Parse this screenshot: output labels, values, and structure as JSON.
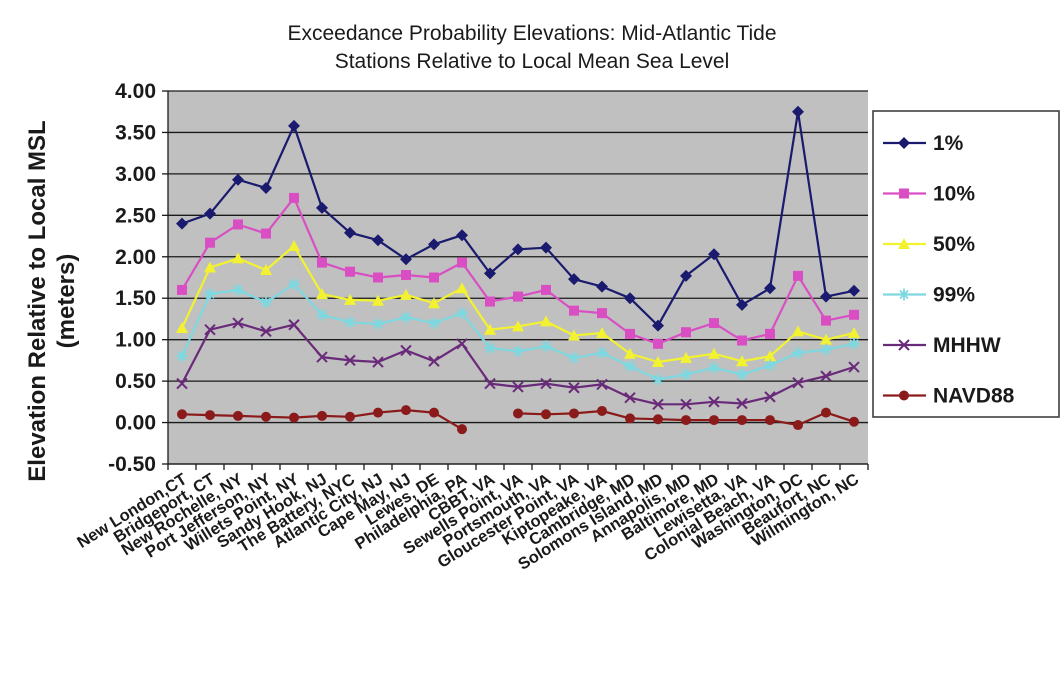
{
  "chart_data": {
    "type": "line",
    "title": "Exceedance Probability Elevations: Mid-Atlantic Tide Stations Relative to Local Mean Sea Level",
    "title_lines": [
      "Exceedance Probability Elevations: Mid-Atlantic Tide",
      "Stations Relative to Local Mean Sea Level"
    ],
    "xlabel": "",
    "ylabel": "Elevation Relative to Local MSL (meters)",
    "ylabel_lines": [
      "Elevation Relative to Local MSL",
      "(meters)"
    ],
    "ylim": [
      -0.5,
      4.0
    ],
    "yticks": [
      4.0,
      3.5,
      3.0,
      2.5,
      2.0,
      1.5,
      1.0,
      0.5,
      0.0,
      -0.5
    ],
    "ytick_labels": [
      "4.00",
      "3.50",
      "3.00",
      "2.50",
      "2.00",
      "1.50",
      "1.00",
      "0.50",
      "0.00",
      "-0.50"
    ],
    "grid": true,
    "plot_background": "#c0c0c0",
    "legend_position": "right",
    "categories": [
      "New London,CT",
      "Bridgeport, CT",
      "New Rochelle, NY",
      "Port Jefferson, NY",
      "Willets Point, NY",
      "Sandy Hook, NJ",
      "The Battery, NYC",
      "Atlantic City, NJ",
      "Cape May, NJ",
      "Lewes, DE",
      "Philadelphia, PA",
      "CBBT, VA",
      "Sewells Point, VA",
      "Portsmouth, VA",
      "Gloucester Point, VA",
      "Kiptopeake, VA",
      "Cambridge, MD",
      "Solomons Island, MD",
      "Annapolis, MD",
      "Baltimore, MD",
      "Lewisetta, VA",
      "Colonial Beach, VA",
      "Washington, DC",
      "Beaufort, NC",
      "Wilmington, NC"
    ],
    "series": [
      {
        "name": "1%",
        "color": "#1a1a6e",
        "marker": "diamond",
        "values": [
          2.4,
          2.52,
          2.93,
          2.83,
          3.58,
          2.59,
          2.29,
          2.2,
          1.97,
          2.15,
          2.26,
          1.8,
          2.09,
          2.11,
          1.73,
          1.64,
          1.5,
          1.17,
          1.77,
          2.03,
          1.42,
          1.62,
          3.75,
          1.52,
          1.59
        ]
      },
      {
        "name": "10%",
        "color": "#d94fc3",
        "marker": "square",
        "values": [
          1.6,
          2.17,
          2.39,
          2.28,
          2.71,
          1.93,
          1.82,
          1.75,
          1.78,
          1.75,
          1.93,
          1.46,
          1.52,
          1.6,
          1.35,
          1.32,
          1.07,
          0.95,
          1.09,
          1.2,
          0.99,
          1.07,
          1.77,
          1.23,
          1.3
        ]
      },
      {
        "name": "50%",
        "color": "#f2f230",
        "marker": "triangle",
        "values": [
          1.14,
          1.87,
          1.98,
          1.84,
          2.13,
          1.55,
          1.48,
          1.47,
          1.54,
          1.44,
          1.62,
          1.12,
          1.16,
          1.22,
          1.05,
          1.08,
          0.83,
          0.73,
          0.78,
          0.83,
          0.74,
          0.8,
          1.1,
          1.0,
          1.08
        ]
      },
      {
        "name": "99%",
        "color": "#7dd8e0",
        "marker": "asterisk",
        "values": [
          0.8,
          1.55,
          1.6,
          1.45,
          1.67,
          1.3,
          1.21,
          1.19,
          1.27,
          1.2,
          1.32,
          0.9,
          0.86,
          0.92,
          0.78,
          0.84,
          0.68,
          0.52,
          0.58,
          0.66,
          0.58,
          0.69,
          0.84,
          0.88,
          0.95
        ]
      },
      {
        "name": "MHHW",
        "color": "#6a2a7a",
        "marker": "x",
        "values": [
          0.47,
          1.12,
          1.2,
          1.1,
          1.18,
          0.79,
          0.75,
          0.73,
          0.87,
          0.74,
          0.95,
          0.47,
          0.43,
          0.47,
          0.42,
          0.46,
          0.3,
          0.22,
          0.22,
          0.25,
          0.23,
          0.31,
          0.48,
          0.56,
          0.67
        ]
      },
      {
        "name": "NAVD88",
        "color": "#8b1a1a",
        "marker": "circle",
        "values": [
          0.1,
          0.09,
          0.08,
          0.07,
          0.06,
          0.08,
          0.07,
          0.12,
          0.15,
          0.12,
          -0.08,
          null,
          0.11,
          0.1,
          0.11,
          0.14,
          0.05,
          0.04,
          0.03,
          0.03,
          0.03,
          0.03,
          -0.03,
          0.12,
          0.01
        ]
      }
    ]
  }
}
